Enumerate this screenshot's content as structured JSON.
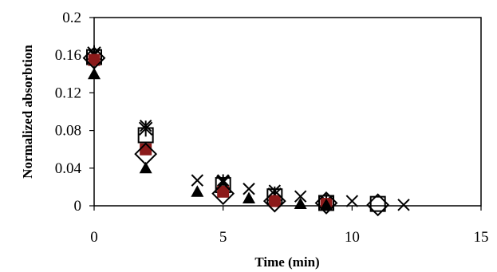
{
  "chart_data": {
    "type": "scatter",
    "title": "",
    "xlabel": "Time (min)",
    "ylabel": "Normalized absorbtion",
    "xlim": [
      0,
      15
    ],
    "ylim": [
      0,
      0.2
    ],
    "xticks": [
      "0",
      "5",
      "10",
      "15"
    ],
    "yticks": [
      "0",
      "0.04",
      "0.08",
      "0.12",
      "0.16",
      "0.2"
    ],
    "grid": false,
    "legend": "none",
    "series": [
      {
        "marker": "x-cross",
        "color": "#000000",
        "x": [
          0,
          2,
          4,
          5,
          6,
          7,
          8,
          9,
          10,
          12
        ],
        "y": [
          0.16,
          0.085,
          0.027,
          0.027,
          0.018,
          0.016,
          0.01,
          0.005,
          0.005,
          0.001
        ]
      },
      {
        "marker": "open-square",
        "color": "#000000",
        "x": [
          0,
          2,
          5,
          7,
          9,
          11
        ],
        "y": [
          0.158,
          0.075,
          0.022,
          0.01,
          0.003,
          0.002
        ]
      },
      {
        "marker": "asterisk",
        "color": "#000000",
        "x": [
          0,
          2,
          5,
          7,
          9
        ],
        "y": [
          0.162,
          0.082,
          0.025,
          0.012,
          0.004
        ]
      },
      {
        "marker": "filled-square",
        "color": "#8b1a1a",
        "x": [
          0,
          2,
          5,
          7,
          9
        ],
        "y": [
          0.155,
          0.06,
          0.015,
          0.005,
          0.002
        ]
      },
      {
        "marker": "filled-triangle",
        "color": "#000000",
        "x": [
          0,
          2,
          4,
          6,
          8,
          9
        ],
        "y": [
          0.14,
          0.04,
          0.015,
          0.008,
          0.002,
          0.001
        ]
      },
      {
        "marker": "open-diamond",
        "color": "#000000",
        "x": [
          0,
          2,
          5,
          7,
          9,
          11
        ],
        "y": [
          0.157,
          0.055,
          0.013,
          0.005,
          0.003,
          0.001
        ]
      }
    ]
  }
}
